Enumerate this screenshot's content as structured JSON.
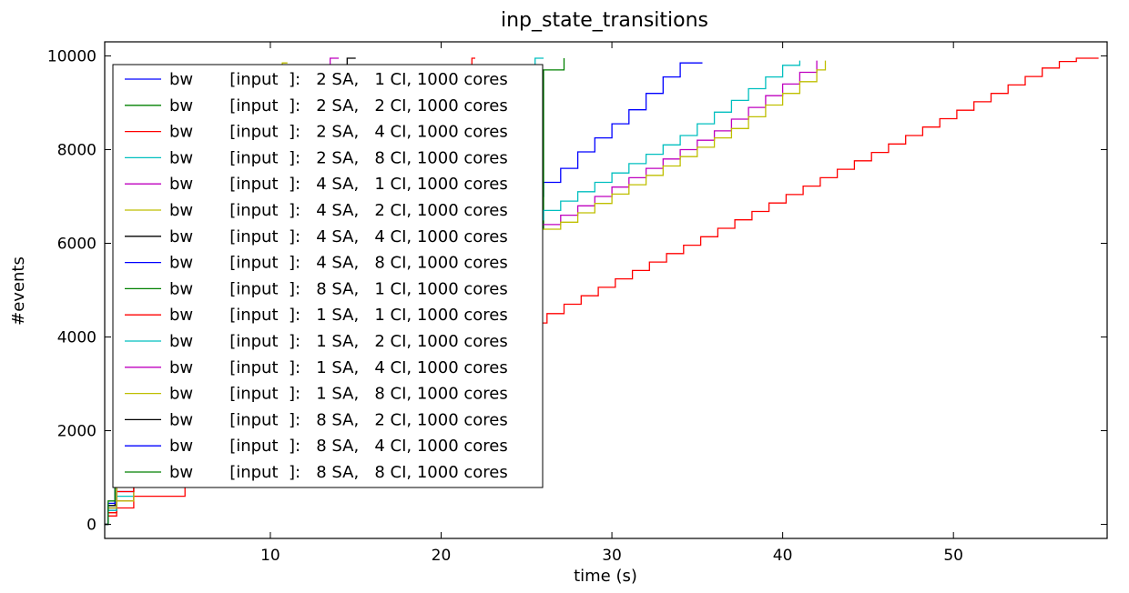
{
  "chart_data": {
    "type": "line",
    "title": "inp_state_transitions",
    "xlabel": "time (s)",
    "ylabel": "#events",
    "xlim": [
      0.3,
      59
    ],
    "ylim": [
      -300,
      10300
    ],
    "xticks": [
      10,
      20,
      30,
      40,
      50
    ],
    "yticks": [
      0,
      2000,
      4000,
      6000,
      8000,
      10000
    ],
    "grid": false,
    "legend_position": "upper-left",
    "step": true,
    "series": [
      {
        "name": "bw       [input  ]:   2 SA,   1 CI, 1000 cores",
        "color": "#0000ff",
        "points": [
          [
            0.3,
            0
          ],
          [
            0.5,
            300
          ],
          [
            1,
            700
          ],
          [
            2,
            1000
          ],
          [
            5,
            2500
          ],
          [
            10,
            4000
          ],
          [
            20,
            6000
          ],
          [
            25,
            7000
          ],
          [
            26,
            7300
          ],
          [
            27,
            7600
          ],
          [
            28,
            7950
          ],
          [
            29,
            8250
          ],
          [
            30,
            8550
          ],
          [
            31,
            8850
          ],
          [
            32,
            9200
          ],
          [
            33,
            9550
          ],
          [
            34,
            9850
          ],
          [
            35.3,
            9850
          ]
        ]
      },
      {
        "name": "bw       [input  ]:   2 SA,   2 CI, 1000 cores",
        "color": "#008000",
        "points": [
          [
            0.3,
            0
          ],
          [
            0.5,
            350
          ],
          [
            1,
            1000
          ],
          [
            2,
            1500
          ],
          [
            5,
            3000
          ],
          [
            10,
            5000
          ],
          [
            20,
            6000
          ],
          [
            25,
            6300
          ],
          [
            26,
            9700
          ],
          [
            27.2,
            9950
          ]
        ]
      },
      {
        "name": "bw       [input  ]:   2 SA,   4 CI, 1000 cores",
        "color": "#ff0000",
        "points": [
          [
            0.3,
            0
          ],
          [
            0.5,
            180
          ],
          [
            1,
            350
          ],
          [
            2,
            600
          ],
          [
            5,
            1000
          ],
          [
            10,
            2000
          ],
          [
            20,
            3600
          ],
          [
            25,
            4300
          ],
          [
            26.2,
            4500
          ],
          [
            27.2,
            4700
          ],
          [
            28.2,
            4880
          ],
          [
            29.2,
            5060
          ],
          [
            30.2,
            5240
          ],
          [
            31.2,
            5420
          ],
          [
            32.2,
            5600
          ],
          [
            33.2,
            5780
          ],
          [
            34.2,
            5960
          ],
          [
            35.2,
            6140
          ],
          [
            36.2,
            6320
          ],
          [
            37.2,
            6500
          ],
          [
            38.2,
            6680
          ],
          [
            39.2,
            6860
          ],
          [
            40.2,
            7040
          ],
          [
            41.2,
            7220
          ],
          [
            42.2,
            7400
          ],
          [
            43.2,
            7580
          ],
          [
            44.2,
            7760
          ],
          [
            45.2,
            7940
          ],
          [
            46.2,
            8120
          ],
          [
            47.2,
            8300
          ],
          [
            48.2,
            8480
          ],
          [
            49.2,
            8660
          ],
          [
            50.2,
            8840
          ],
          [
            51.2,
            9020
          ],
          [
            52.2,
            9200
          ],
          [
            53.2,
            9380
          ],
          [
            54.2,
            9560
          ],
          [
            55.2,
            9740
          ],
          [
            56.2,
            9880
          ],
          [
            57.2,
            9950
          ],
          [
            58.5,
            9950
          ]
        ]
      },
      {
        "name": "bw       [input  ]:   2 SA,   8 CI, 1000 cores",
        "color": "#00bfbf",
        "points": [
          [
            0.3,
            0
          ],
          [
            0.5,
            300
          ],
          [
            1,
            600
          ],
          [
            2,
            900
          ],
          [
            5,
            2200
          ],
          [
            10,
            3800
          ],
          [
            20,
            5800
          ],
          [
            25,
            6500
          ],
          [
            26,
            6700
          ],
          [
            27,
            6900
          ],
          [
            28,
            7100
          ],
          [
            29,
            7300
          ],
          [
            30,
            7500
          ],
          [
            31,
            7700
          ],
          [
            32,
            7900
          ],
          [
            33,
            8100
          ],
          [
            34,
            8300
          ],
          [
            35,
            8550
          ],
          [
            36,
            8800
          ],
          [
            37,
            9050
          ],
          [
            38,
            9300
          ],
          [
            39,
            9550
          ],
          [
            40,
            9800
          ],
          [
            41,
            9900
          ]
        ]
      },
      {
        "name": "bw       [input  ]:   4 SA,   1 CI, 1000 cores",
        "color": "#bf00bf",
        "points": [
          [
            0.3,
            0
          ],
          [
            0.5,
            250
          ],
          [
            1,
            500
          ],
          [
            2,
            800
          ],
          [
            5,
            2000
          ],
          [
            10,
            3600
          ],
          [
            20,
            5600
          ],
          [
            25,
            6400
          ],
          [
            27,
            6600
          ],
          [
            28,
            6800
          ],
          [
            29,
            7000
          ],
          [
            30,
            7200
          ],
          [
            31,
            7400
          ],
          [
            32,
            7600
          ],
          [
            33,
            7800
          ],
          [
            34,
            8000
          ],
          [
            35,
            8200
          ],
          [
            36,
            8400
          ],
          [
            37,
            8650
          ],
          [
            38,
            8900
          ],
          [
            39,
            9150
          ],
          [
            40,
            9400
          ],
          [
            41,
            9650
          ],
          [
            42,
            9900
          ]
        ]
      },
      {
        "name": "bw       [input  ]:   4 SA,   2 CI, 1000 cores",
        "color": "#bfbf00",
        "points": [
          [
            0.3,
            0
          ],
          [
            0.5,
            250
          ],
          [
            1,
            500
          ],
          [
            2,
            800
          ],
          [
            5,
            2000
          ],
          [
            10,
            3500
          ],
          [
            20,
            5500
          ],
          [
            25,
            6300
          ],
          [
            27,
            6450
          ],
          [
            28,
            6650
          ],
          [
            29,
            6850
          ],
          [
            30,
            7050
          ],
          [
            31,
            7250
          ],
          [
            32,
            7450
          ],
          [
            33,
            7650
          ],
          [
            34,
            7850
          ],
          [
            35,
            8050
          ],
          [
            36,
            8250
          ],
          [
            37,
            8450
          ],
          [
            38,
            8700
          ],
          [
            39,
            8950
          ],
          [
            40,
            9200
          ],
          [
            41,
            9450
          ],
          [
            42,
            9700
          ],
          [
            42.5,
            9900
          ]
        ]
      },
      {
        "name": "bw       [input  ]:   4 SA,   4 CI, 1000 cores",
        "color": "#000000",
        "points": [
          [
            0.3,
            0
          ],
          [
            0.5,
            400
          ],
          [
            1,
            1100
          ],
          [
            2,
            1800
          ],
          [
            5,
            3500
          ],
          [
            10,
            6000
          ],
          [
            13,
            8500
          ],
          [
            14.5,
            9950
          ],
          [
            15,
            9950
          ]
        ]
      },
      {
        "name": "bw       [input  ]:   4 SA,   8 CI, 1000 cores",
        "color": "#0000ff",
        "points": [
          [
            0.3,
            0
          ],
          [
            0.5,
            350
          ],
          [
            1,
            900
          ],
          [
            2,
            1400
          ],
          [
            5,
            3000
          ],
          [
            10,
            5500
          ],
          [
            15,
            7500
          ],
          [
            20,
            8500
          ],
          [
            25,
            9200
          ]
        ]
      },
      {
        "name": "bw       [input  ]:   8 SA,   1 CI, 1000 cores",
        "color": "#008000",
        "points": [
          [
            0.3,
            0
          ],
          [
            0.5,
            400
          ],
          [
            1,
            1100
          ],
          [
            2,
            1700
          ],
          [
            5,
            3500
          ],
          [
            10,
            6000
          ],
          [
            15,
            7800
          ],
          [
            20,
            8800
          ],
          [
            25,
            9500
          ]
        ]
      },
      {
        "name": "bw       [input  ]:   1 SA,   1 CI, 1000 cores",
        "color": "#ff0000",
        "points": [
          [
            0.3,
            0
          ],
          [
            0.5,
            250
          ],
          [
            1,
            700
          ],
          [
            2,
            1200
          ],
          [
            5,
            2800
          ],
          [
            10,
            5000
          ],
          [
            15,
            7000
          ],
          [
            20,
            8800
          ],
          [
            21.8,
            9950
          ],
          [
            22,
            9950
          ]
        ]
      },
      {
        "name": "bw       [input  ]:   1 SA,   2 CI, 1000 cores",
        "color": "#00bfbf",
        "points": [
          [
            0.3,
            0
          ],
          [
            0.5,
            300
          ],
          [
            1,
            800
          ],
          [
            2,
            1300
          ],
          [
            5,
            3000
          ],
          [
            10,
            5200
          ],
          [
            15,
            7000
          ],
          [
            20,
            8500
          ],
          [
            24,
            9500
          ],
          [
            25.5,
            9950
          ],
          [
            26,
            9950
          ]
        ]
      },
      {
        "name": "bw       [input  ]:   1 SA,   4 CI, 1000 cores",
        "color": "#bf00bf",
        "points": [
          [
            0.3,
            0
          ],
          [
            0.5,
            350
          ],
          [
            1,
            900
          ],
          [
            2,
            1500
          ],
          [
            5,
            3500
          ],
          [
            10,
            6500
          ],
          [
            12,
            8500
          ],
          [
            13.5,
            9950
          ],
          [
            14,
            9950
          ]
        ]
      },
      {
        "name": "bw       [input  ]:   1 SA,   8 CI, 1000 cores",
        "color": "#bfbf00",
        "points": [
          [
            0.3,
            0
          ],
          [
            0.5,
            350
          ],
          [
            1,
            900
          ],
          [
            2,
            1400
          ],
          [
            5,
            3200
          ],
          [
            9,
            7000
          ],
          [
            10.7,
            9850
          ],
          [
            11,
            9850
          ]
        ]
      },
      {
        "name": "bw       [input  ]:   8 SA,   2 CI, 1000 cores",
        "color": "#000000",
        "points": [
          [
            0.3,
            0
          ],
          [
            0.5,
            400
          ],
          [
            0.9,
            1100
          ],
          [
            1.5,
            1800
          ],
          [
            5,
            3500
          ],
          [
            10,
            6000
          ],
          [
            15,
            8000
          ]
        ]
      },
      {
        "name": "bw       [input  ]:   8 SA,   4 CI, 1000 cores",
        "color": "#0000ff",
        "points": [
          [
            0.3,
            0
          ],
          [
            0.5,
            450
          ],
          [
            0.9,
            1450
          ],
          [
            1.5,
            1800
          ],
          [
            5,
            3500
          ],
          [
            10,
            6000
          ],
          [
            15,
            8000
          ]
        ]
      },
      {
        "name": "bw       [input  ]:   8 SA,   8 CI, 1000 cores",
        "color": "#008000",
        "points": [
          [
            0.3,
            0
          ],
          [
            0.5,
            500
          ],
          [
            0.9,
            2050
          ],
          [
            1.5,
            2050
          ],
          [
            5,
            4000
          ],
          [
            10,
            6500
          ],
          [
            15,
            8500
          ]
        ]
      }
    ]
  }
}
